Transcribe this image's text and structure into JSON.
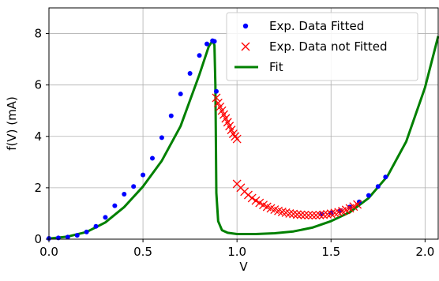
{
  "chart_data": {
    "type": "scatter",
    "title": "",
    "xlabel": "V",
    "ylabel": "f(V) (mA)",
    "xlim": [
      0.0,
      2.07
    ],
    "ylim": [
      0,
      9.0
    ],
    "x_ticks": [
      0.0,
      0.5,
      1.0,
      1.5,
      2.0
    ],
    "x_tick_labels": [
      "0.0",
      "0.5",
      "1.0",
      "1.5",
      "2.0"
    ],
    "y_ticks": [
      0,
      2,
      4,
      6,
      8
    ],
    "y_tick_labels": [
      "0",
      "2",
      "4",
      "6",
      "8"
    ],
    "grid": true,
    "legend_position": "top-right",
    "colors": {
      "fitted": "#0000ff",
      "not_fitted": "#ff0000",
      "fit": "#008000"
    },
    "series": [
      {
        "name": "Exp. Data Fitted",
        "marker": "dot",
        "x": [
          0.0,
          0.05,
          0.1,
          0.15,
          0.2,
          0.25,
          0.3,
          0.35,
          0.4,
          0.45,
          0.5,
          0.55,
          0.6,
          0.65,
          0.7,
          0.75,
          0.8,
          0.84,
          0.87,
          0.88,
          0.89,
          1.45,
          1.5,
          1.55,
          1.6,
          1.65,
          1.7,
          1.75,
          1.79
        ],
        "y": [
          0.03,
          0.05,
          0.08,
          0.15,
          0.28,
          0.5,
          0.85,
          1.3,
          1.75,
          2.05,
          2.5,
          3.15,
          3.95,
          4.8,
          5.65,
          6.45,
          7.15,
          7.6,
          7.72,
          7.7,
          5.75,
          0.97,
          1.02,
          1.11,
          1.25,
          1.45,
          1.7,
          2.05,
          2.42
        ]
      },
      {
        "name": "Exp. Data not Fitted",
        "marker": "x",
        "x": [
          0.89,
          0.9,
          0.91,
          0.92,
          0.93,
          0.94,
          0.95,
          0.96,
          0.97,
          0.98,
          0.99,
          1.0,
          1.0,
          1.02,
          1.04,
          1.06,
          1.08,
          1.1,
          1.12,
          1.14,
          1.16,
          1.18,
          1.2,
          1.22,
          1.24,
          1.26,
          1.28,
          1.3,
          1.32,
          1.34,
          1.36,
          1.38,
          1.4,
          1.42,
          1.44,
          1.46,
          1.48,
          1.5,
          1.52,
          1.54,
          1.56,
          1.58,
          1.6,
          1.62,
          1.64
        ],
        "y": [
          5.5,
          5.3,
          5.15,
          5.0,
          4.85,
          4.7,
          4.55,
          4.4,
          4.25,
          4.1,
          4.0,
          3.9,
          2.15,
          2.0,
          1.85,
          1.72,
          1.6,
          1.5,
          1.41,
          1.33,
          1.26,
          1.2,
          1.15,
          1.1,
          1.06,
          1.03,
          1.0,
          0.98,
          0.96,
          0.95,
          0.94,
          0.93,
          0.93,
          0.93,
          0.94,
          0.95,
          0.97,
          0.99,
          1.02,
          1.05,
          1.09,
          1.14,
          1.2,
          1.27,
          1.35
        ]
      },
      {
        "name": "Fit",
        "marker": "line",
        "x": [
          0.0,
          0.1,
          0.2,
          0.3,
          0.4,
          0.5,
          0.6,
          0.7,
          0.8,
          0.85,
          0.87,
          0.88,
          0.885,
          0.89,
          0.9,
          0.92,
          0.95,
          1.0,
          1.1,
          1.2,
          1.3,
          1.4,
          1.5,
          1.6,
          1.7,
          1.8,
          1.9,
          2.0,
          2.07
        ],
        "y": [
          0.02,
          0.1,
          0.28,
          0.65,
          1.25,
          2.05,
          3.05,
          4.4,
          6.4,
          7.5,
          7.72,
          7.55,
          6.0,
          1.8,
          0.7,
          0.35,
          0.25,
          0.2,
          0.2,
          0.23,
          0.3,
          0.45,
          0.7,
          1.05,
          1.6,
          2.45,
          3.8,
          5.9,
          7.9
        ]
      }
    ]
  }
}
